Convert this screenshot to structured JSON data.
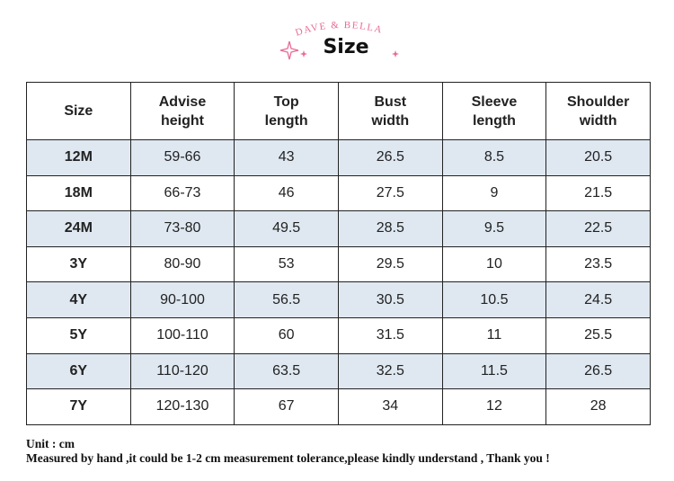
{
  "header": {
    "brand": "DAVE & BELLA",
    "title": "Size"
  },
  "table": {
    "columns": [
      "Size",
      "Advise height",
      "Top length",
      "Bust width",
      "Sleeve length",
      "Shoulder width"
    ],
    "rows": [
      [
        "12M",
        "59-66",
        43,
        26.5,
        8.5,
        20.5
      ],
      [
        "18M",
        "66-73",
        46,
        27.5,
        9,
        21.5
      ],
      [
        "24M",
        "73-80",
        49.5,
        28.5,
        9.5,
        22.5
      ],
      [
        "3Y",
        "80-90",
        53,
        29.5,
        10,
        23.5
      ],
      [
        "4Y",
        "90-100",
        56.5,
        30.5,
        10.5,
        24.5
      ],
      [
        "5Y",
        "100-110",
        60,
        31.5,
        11,
        25.5
      ],
      [
        "6Y",
        "110-120",
        63.5,
        32.5,
        11.5,
        26.5
      ],
      [
        "7Y",
        "120-130",
        67,
        34,
        12,
        28
      ]
    ]
  },
  "footer": {
    "unit": "Unit : cm",
    "note": "Measured by hand ,it could be 1-2 cm measurement tolerance,please kindly understand , Thank you !"
  }
}
